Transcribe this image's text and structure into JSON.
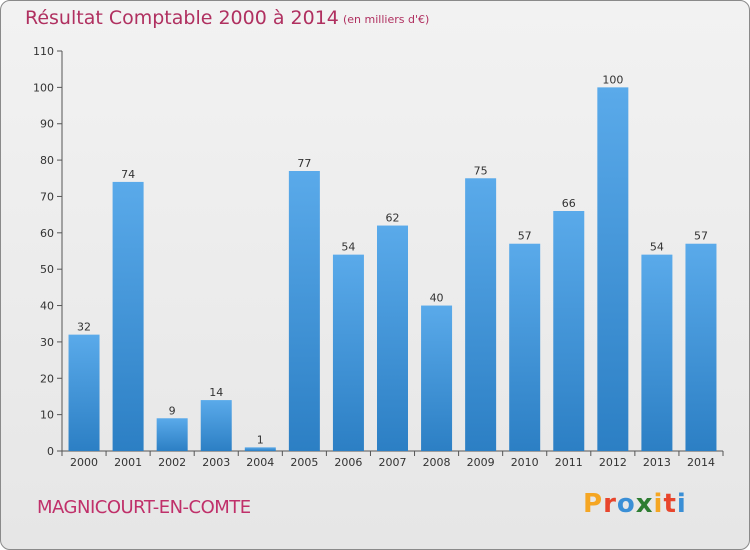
{
  "header": {
    "title": "Résultat Comptable 2000 à 2014",
    "subtitle": "(en milliers d'€)"
  },
  "footer": {
    "commune": "MAGNICOURT-EN-COMTE",
    "brand": "Proxiti",
    "brand_colors": [
      "#f5a623",
      "#e8452c",
      "#3a8fd6",
      "#2e7d32",
      "#f5a623",
      "#e8452c",
      "#3a8fd6"
    ]
  },
  "colors": {
    "bar_top": "#5aaaea",
    "bar_bottom": "#2c7fc4",
    "title": "#b03060"
  },
  "chart_data": {
    "type": "bar",
    "title": "Résultat Comptable 2000 à 2014",
    "subtitle": "(en milliers d'€)",
    "xlabel": "",
    "ylabel": "",
    "categories": [
      "2000",
      "2001",
      "2002",
      "2003",
      "2004",
      "2005",
      "2006",
      "2007",
      "2008",
      "2009",
      "2010",
      "2011",
      "2012",
      "2013",
      "2014"
    ],
    "values": [
      32,
      74,
      9,
      14,
      1,
      77,
      54,
      62,
      40,
      75,
      57,
      66,
      100,
      54,
      57
    ],
    "ylim": [
      0,
      110
    ],
    "yticks": [
      0,
      10,
      20,
      30,
      40,
      50,
      60,
      70,
      80,
      90,
      100,
      110
    ],
    "grid": false,
    "legend": "none"
  }
}
